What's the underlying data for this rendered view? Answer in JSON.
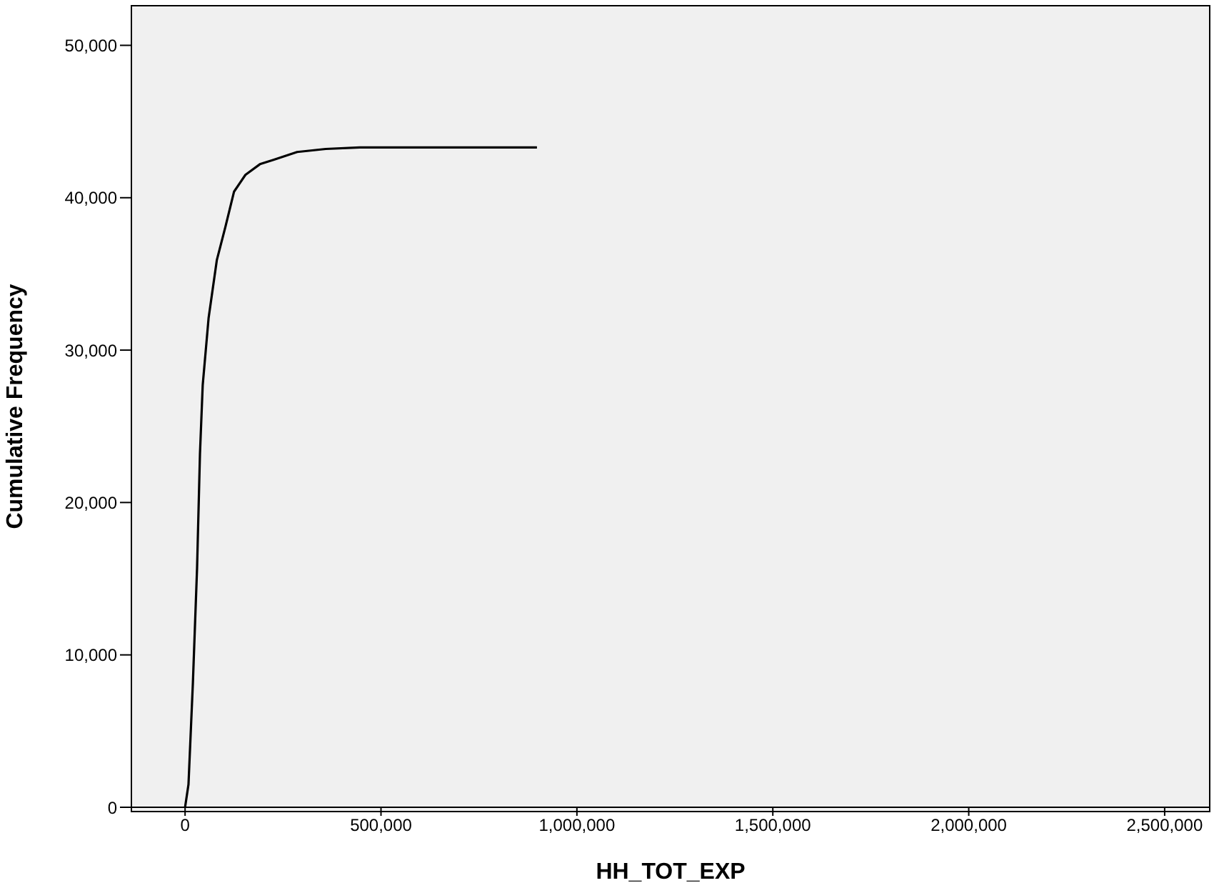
{
  "chart_data": {
    "type": "line",
    "xlabel": "HH_TOT_EXP",
    "ylabel": "Cumulative Frequency",
    "x": [
      0,
      8700,
      20000,
      30600,
      38000,
      45000,
      60000,
      81000,
      103000,
      125000,
      154000,
      191000,
      227000,
      286000,
      359000,
      446000,
      600000,
      898000
    ],
    "series": [
      {
        "color": "#000000",
        "values": [
          0,
          1500,
          8200,
          15700,
          23200,
          27700,
          32100,
          35900,
          38100,
          40400,
          41500,
          42200,
          42500,
          43000,
          43200,
          43300,
          43300,
          43300
        ]
      }
    ],
    "xlim": [
      -137000,
      2615000
    ],
    "xticks": [
      {
        "value": 0,
        "label": "0"
      },
      {
        "value": 500000,
        "label": "500,000"
      },
      {
        "value": 1000000,
        "label": "1,000,000"
      },
      {
        "value": 1500000,
        "label": "1,500,000"
      },
      {
        "value": 2000000,
        "label": "2,000,000"
      },
      {
        "value": 2500000,
        "label": "2,500,000"
      }
    ],
    "ylim": [
      0,
      52600
    ],
    "yticks": [
      {
        "value": 0,
        "label": "0"
      },
      {
        "value": 10000,
        "label": "10,000"
      },
      {
        "value": 20000,
        "label": "20,000"
      },
      {
        "value": 30000,
        "label": "30,000"
      },
      {
        "value": 40000,
        "label": "40,000"
      },
      {
        "value": 50000,
        "label": "50,000"
      }
    ],
    "legend": false,
    "marker": "none",
    "line_style": "solid"
  }
}
